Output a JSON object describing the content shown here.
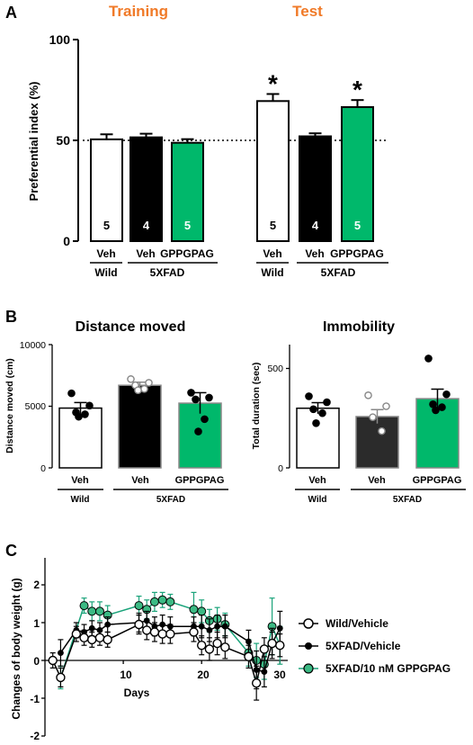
{
  "panels": {
    "A": {
      "label": "A",
      "section_training": "Training",
      "section_test": "Test",
      "ylabel": "Preferential index (%)",
      "yticks": [
        "0",
        "50",
        "100"
      ],
      "ylim": [
        0,
        100
      ],
      "reference_line": 50,
      "asterisk": "*",
      "groups": {
        "training": {
          "veh": "Veh",
          "veh2": "Veh",
          "gppgpag": "GPPGPAG",
          "wild": "Wild",
          "fxad": "5XFAD"
        },
        "test": {
          "veh": "Veh",
          "veh2": "Veh",
          "gppgpag": "GPPGPAG",
          "wild": "Wild",
          "fxad": "5XFAD"
        }
      },
      "bars": [
        {
          "phase": "Training",
          "value": 50.5,
          "error": 2.5,
          "n": "5",
          "color": "#ffffff"
        },
        {
          "phase": "Training",
          "value": 51.5,
          "error": 1.8,
          "n": "4",
          "color": "#000000"
        },
        {
          "phase": "Training",
          "value": 48.8,
          "error": 1.8,
          "n": "5",
          "color": "#00b86b"
        },
        {
          "phase": "Test",
          "value": 69.5,
          "error": 3.5,
          "n": "5",
          "color": "#ffffff",
          "sig": true
        },
        {
          "phase": "Test",
          "value": 52.0,
          "error": 1.5,
          "n": "4",
          "color": "#000000"
        },
        {
          "phase": "Test",
          "value": 66.5,
          "error": 3.5,
          "n": "5",
          "color": "#00b86b",
          "sig": true
        }
      ]
    },
    "B": {
      "label": "B",
      "distance": {
        "title": "Distance moved",
        "ylabel": "Distance moved (cm)",
        "yticks": [
          "0",
          "5000",
          "10000"
        ],
        "ylim": [
          0,
          10000
        ],
        "xlabels": {
          "veh": "Veh",
          "veh2": "Veh",
          "gppgpag": "GPPGPAG",
          "wild": "Wild",
          "fxad": "5XFAD"
        }
      },
      "immobility": {
        "title": "Immobility",
        "ylabel": "Total duration (sec)",
        "yticks": [
          "0",
          "500"
        ],
        "ylim": [
          0,
          620
        ],
        "xlabels": {
          "veh": "Veh",
          "veh2": "Veh",
          "gppgpag": "GPPGPAG",
          "wild": "Wild",
          "fxad": "5XFAD"
        }
      }
    },
    "C": {
      "label": "C",
      "ylabel": "Changes of body weight (g)",
      "xlabel": "Days",
      "yticks": [
        "-2",
        "-1",
        "0",
        "1",
        "2"
      ],
      "xticks": [
        "10",
        "20",
        "30"
      ],
      "legend": {
        "wild": "Wild/Vehicle",
        "fxad": "5XFAD/Vehicle",
        "gpp": "5XFAD/10 nM GPPGPAG"
      }
    }
  },
  "chart_data": [
    {
      "type": "bar",
      "title": "",
      "ylabel": "Preferential index (%)",
      "ylim": [
        0,
        100
      ],
      "categories": [
        "Training Wild Veh",
        "Training 5XFAD Veh",
        "Training 5XFAD GPPGPAG",
        "Test Wild Veh",
        "Test 5XFAD Veh",
        "Test 5XFAD GPPGPAG"
      ],
      "values": [
        50.5,
        51.5,
        48.8,
        69.5,
        52.0,
        66.5
      ],
      "errors": [
        2.5,
        1.8,
        1.8,
        3.5,
        1.5,
        3.5
      ],
      "n": [
        5,
        4,
        5,
        5,
        4,
        5
      ]
    },
    {
      "type": "bar",
      "title": "Distance moved",
      "ylabel": "Distance moved (cm)",
      "ylim": [
        0,
        10000
      ],
      "categories": [
        "Wild Veh",
        "5XFAD Veh",
        "5XFAD GPPGPAG"
      ],
      "values": [
        4850,
        6700,
        5250
      ],
      "errors": [
        450,
        250,
        850
      ],
      "points": [
        [
          6050,
          5050,
          4500,
          4350,
          4150
        ],
        [
          7200,
          6900,
          6700,
          6400,
          6300
        ],
        [
          6100,
          5700,
          5550,
          3950,
          2950
        ]
      ],
      "colors": [
        "#ffffff",
        "#000000",
        "#00b86b"
      ]
    },
    {
      "type": "bar",
      "title": "Immobility",
      "ylabel": "Total duration (sec)",
      "ylim": [
        0,
        620
      ],
      "categories": [
        "Wild Veh",
        "5XFAD Veh",
        "5XFAD GPPGPAG"
      ],
      "values": [
        300,
        258,
        348
      ],
      "errors": [
        28,
        35,
        48
      ],
      "points": [
        [
          360,
          330,
          295,
          275,
          225
        ],
        [
          365,
          310,
          255,
          185
        ],
        [
          550,
          370,
          320,
          305,
          290
        ]
      ],
      "colors": [
        "#ffffff",
        "#2b2b2b",
        "#00b86b"
      ]
    },
    {
      "type": "line",
      "title": "",
      "xlabel": "Days",
      "ylabel": "Changes of body weight (g)",
      "ylim": [
        -2,
        2
      ],
      "xlim": [
        0,
        31
      ],
      "series": [
        {
          "name": "Wild/Vehicle",
          "color": "#000000",
          "marker": "open",
          "x": [
            1,
            2,
            4,
            5,
            6,
            7,
            8,
            12,
            13,
            14,
            15,
            16,
            19,
            20,
            21,
            22,
            23,
            26,
            27,
            28,
            29,
            30
          ],
          "y": [
            0,
            -0.45,
            0.7,
            0.6,
            0.55,
            0.6,
            0.55,
            0.95,
            0.8,
            0.75,
            0.7,
            0.7,
            0.75,
            0.4,
            0.3,
            0.45,
            0.35,
            0.1,
            -0.6,
            0.3,
            0.45,
            0.4
          ],
          "error": [
            0.2,
            0.25,
            0.2,
            0.2,
            0.2,
            0.2,
            0.2,
            0.25,
            0.25,
            0.25,
            0.25,
            0.25,
            0.25,
            0.25,
            0.3,
            0.3,
            0.3,
            0.3,
            0.45,
            0.3,
            0.3,
            0.3
          ]
        },
        {
          "name": "5XFAD/Vehicle",
          "color": "#000000",
          "marker": "filled",
          "x": [
            2,
            4,
            5,
            6,
            7,
            8,
            12,
            13,
            14,
            15,
            16,
            19,
            20,
            21,
            22,
            23,
            26,
            27,
            28,
            29,
            30
          ],
          "y": [
            0.2,
            0.8,
            0.75,
            0.85,
            0.8,
            0.95,
            1.0,
            1.05,
            0.9,
            0.95,
            0.9,
            0.9,
            0.9,
            0.8,
            0.9,
            0.9,
            0.5,
            -0.25,
            -0.3,
            0.45,
            0.85
          ],
          "error": [
            0.35,
            0.2,
            0.2,
            0.2,
            0.2,
            0.2,
            0.25,
            0.25,
            0.25,
            0.25,
            0.25,
            0.25,
            0.3,
            0.3,
            0.3,
            0.3,
            0.3,
            0.5,
            0.4,
            0.4,
            0.45
          ]
        },
        {
          "name": "5XFAD/10 nM GPPGPAG",
          "color": "#1aa37a",
          "marker": "filled-green",
          "x": [
            2,
            5,
            6,
            7,
            8,
            12,
            13,
            14,
            15,
            16,
            19,
            20,
            21,
            22,
            23,
            26,
            27,
            28,
            29,
            30
          ],
          "y": [
            -0.45,
            1.45,
            1.3,
            1.3,
            1.2,
            1.45,
            1.35,
            1.55,
            1.6,
            1.55,
            1.35,
            1.3,
            1.05,
            1.1,
            0.95,
            0.2,
            0.0,
            -0.1,
            0.9,
            0.4
          ],
          "error": [
            0.3,
            0.2,
            0.25,
            0.25,
            0.25,
            0.25,
            0.25,
            0.25,
            0.2,
            0.2,
            0.45,
            0.3,
            0.3,
            0.3,
            0.3,
            0.35,
            0.45,
            0.4,
            0.75,
            0.5
          ]
        }
      ]
    }
  ]
}
